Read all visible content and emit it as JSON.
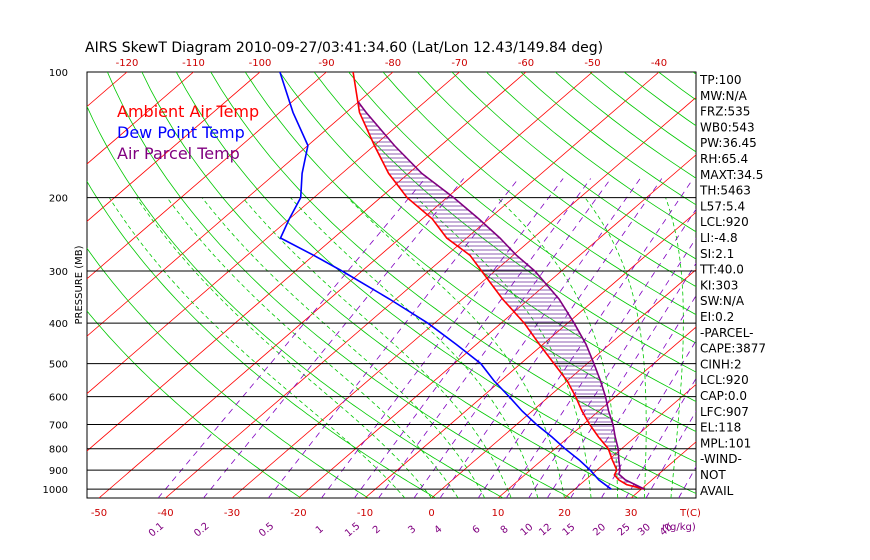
{
  "chart_data": {
    "type": "skewt",
    "title": "AIRS SkewT Diagram 2010-09-27/03:41:34.60 (Lat/Lon 12.43/149.84 deg)",
    "ylabel": "PRESSURE (MB)",
    "pressure_ticks": [
      100,
      200,
      300,
      400,
      500,
      600,
      700,
      800,
      900,
      1000
    ],
    "top_temp_ticks": [
      -120,
      -110,
      -100,
      -90,
      -80,
      -70,
      -60,
      -50,
      -40
    ],
    "bottom_temp_ticks": [
      -50,
      -40,
      -30,
      -20,
      -10,
      0,
      10,
      20,
      30
    ],
    "bottom_temp_unit": "T(C)",
    "mixing_ratio_ticks": [
      "0.1",
      "0.2",
      "0.5",
      "1",
      "1.5",
      "2",
      "3",
      "4",
      "6",
      "8",
      "10",
      "12",
      "15",
      "20",
      "25",
      "30",
      "40"
    ],
    "mixing_ratio_unit": "r(g/kg)",
    "legend": [
      {
        "label": "Ambient Air Temp",
        "color": "#ff0000"
      },
      {
        "label": "Dew Point Temp",
        "color": "#0000ff"
      },
      {
        "label": "Air Parcel Temp",
        "color": "#800080"
      }
    ],
    "series": [
      {
        "name": "Ambient Air Temp",
        "color": "#ff0000",
        "points": [
          [
            1000,
            30.5
          ],
          [
            975,
            27.0
          ],
          [
            950,
            25.0
          ],
          [
            925,
            23.5
          ],
          [
            900,
            23.0
          ],
          [
            850,
            20.5
          ],
          [
            800,
            18.0
          ],
          [
            750,
            14.5
          ],
          [
            700,
            11.0
          ],
          [
            650,
            7.5
          ],
          [
            600,
            4.0
          ],
          [
            550,
            0.0
          ],
          [
            500,
            -5.0
          ],
          [
            450,
            -10.5
          ],
          [
            400,
            -16.5
          ],
          [
            350,
            -24.0
          ],
          [
            300,
            -32.0
          ],
          [
            275,
            -36.5
          ],
          [
            250,
            -43.0
          ],
          [
            225,
            -48.5
          ],
          [
            200,
            -56.0
          ],
          [
            175,
            -63.0
          ],
          [
            150,
            -70.0
          ],
          [
            125,
            -78.0
          ],
          [
            100,
            -86.0
          ]
        ]
      },
      {
        "name": "Dew Point Temp",
        "color": "#0000ff",
        "points": [
          [
            1000,
            25.5
          ],
          [
            950,
            22.0
          ],
          [
            900,
            19.0
          ],
          [
            850,
            15.5
          ],
          [
            800,
            11.5
          ],
          [
            750,
            7.5
          ],
          [
            700,
            3.0
          ],
          [
            650,
            -1.5
          ],
          [
            600,
            -6.0
          ],
          [
            550,
            -11.0
          ],
          [
            500,
            -16.0
          ],
          [
            450,
            -23.0
          ],
          [
            400,
            -31.0
          ],
          [
            350,
            -41.0
          ],
          [
            300,
            -53.0
          ],
          [
            275,
            -60.0
          ],
          [
            250,
            -68.0
          ],
          [
            225,
            -70.0
          ],
          [
            200,
            -72.0
          ],
          [
            175,
            -76.0
          ],
          [
            150,
            -80.0
          ],
          [
            125,
            -88.0
          ],
          [
            100,
            -97.0
          ]
        ]
      },
      {
        "name": "Air Parcel Temp",
        "color": "#800080",
        "points": [
          [
            1000,
            30.5
          ],
          [
            950,
            26.0
          ],
          [
            920,
            24.0
          ],
          [
            900,
            23.5
          ],
          [
            850,
            21.5
          ],
          [
            800,
            19.5
          ],
          [
            750,
            17.0
          ],
          [
            700,
            14.5
          ],
          [
            650,
            11.5
          ],
          [
            600,
            8.5
          ],
          [
            550,
            5.0
          ],
          [
            500,
            1.0
          ],
          [
            450,
            -3.5
          ],
          [
            400,
            -9.0
          ],
          [
            350,
            -15.5
          ],
          [
            300,
            -24.0
          ],
          [
            275,
            -29.5
          ],
          [
            250,
            -35.0
          ],
          [
            225,
            -41.5
          ],
          [
            200,
            -49.0
          ],
          [
            175,
            -58.0
          ],
          [
            150,
            -67.0
          ],
          [
            125,
            -77.0
          ],
          [
            118,
            -80.0
          ]
        ]
      }
    ],
    "indices": [
      "TP:100",
      "MW:N/A",
      "FRZ:535",
      "WB0:543",
      "PW:36.45",
      "RH:65.4",
      "MAXT:34.5",
      "TH:5463",
      "L57:5.4",
      "LCL:920",
      "LI:-4.8",
      "SI:2.1",
      "TT:40.0",
      "KI:303",
      "SW:N/A",
      "EI:0.2",
      "-PARCEL-",
      "CAPE:3877",
      "CINH:2",
      "LCL:920",
      "CAP:0.0",
      "LFC:907",
      "EL:118",
      "MPL:101",
      "-WIND-",
      "NOT",
      "AVAIL"
    ]
  }
}
